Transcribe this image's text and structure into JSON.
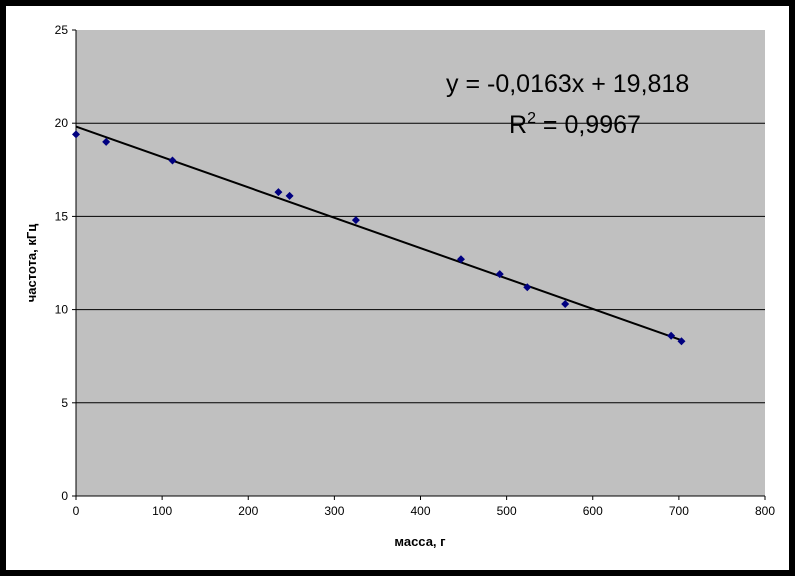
{
  "chart_data": {
    "type": "scatter",
    "xlabel": "масса, г",
    "ylabel": "частота, кГц",
    "xlim": [
      0,
      800
    ],
    "ylim": [
      0,
      25
    ],
    "x_ticks": [
      0,
      100,
      200,
      300,
      400,
      500,
      600,
      700,
      800
    ],
    "y_ticks": [
      0,
      5,
      10,
      15,
      20,
      25
    ],
    "grid": "horizontal major gridlines",
    "legend": "none",
    "plot_background": "#c0c0c0",
    "marker_color": "#000080",
    "line_color": "#000000",
    "series": [
      {
        "points": [
          {
            "x": 0,
            "y": 19.4
          },
          {
            "x": 35,
            "y": 19.0
          },
          {
            "x": 112,
            "y": 18.0
          },
          {
            "x": 235,
            "y": 16.3
          },
          {
            "x": 248,
            "y": 16.1
          },
          {
            "x": 325,
            "y": 14.8
          },
          {
            "x": 447,
            "y": 12.7
          },
          {
            "x": 492,
            "y": 11.9
          },
          {
            "x": 524,
            "y": 11.2
          },
          {
            "x": 568,
            "y": 10.3
          },
          {
            "x": 691,
            "y": 8.6
          },
          {
            "x": 703,
            "y": 8.3
          }
        ]
      }
    ],
    "trendline": {
      "type": "linear",
      "slope": -0.0163,
      "intercept": 19.818,
      "x_range": [
        0,
        703
      ],
      "equation_label": "y = -0,0163x + 19,818",
      "r2_label_prefix": "R",
      "r2_label_sup": "2",
      "r2_label_value": " = 0,9967"
    }
  }
}
